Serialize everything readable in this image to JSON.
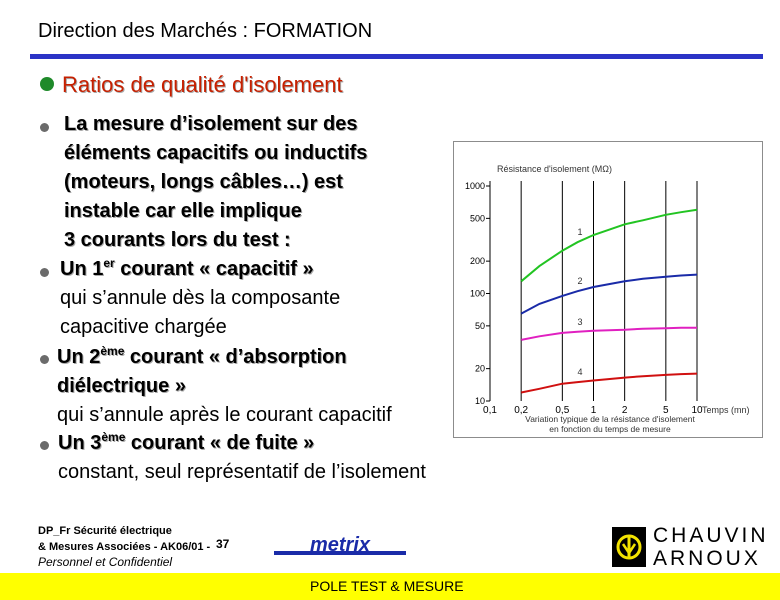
{
  "header": {
    "title": "Direction des Marchés : FORMATION"
  },
  "slide": {
    "heading": "Ratios de qualité d'isolement",
    "intro": [
      "La mesure d’isolement sur des",
      "éléments capacitifs ou inductifs",
      "(moteurs, longs câbles…) est",
      "instable car elle implique",
      "3 courants lors du test :"
    ],
    "current1": {
      "pre": "Un 1",
      "sup": "er",
      "post": " courant « capacitif »",
      "desc": [
        "qui s’annule dès la composante",
        "capacitive chargée"
      ]
    },
    "current2": {
      "pre": "Un 2",
      "sup": "ème",
      "post": " courant « d’absorption",
      "line2": "diélectrique »",
      "desc": "qui s’annule après le courant capacitif"
    },
    "current3": {
      "pre": "Un 3",
      "sup": "ème",
      "post": " courant « de fuite »",
      "desc": "constant, seul représentatif de l’isolement"
    }
  },
  "chart_data": {
    "type": "line",
    "ylabel": "Résistance d'isolement (MΩ)",
    "xlabel": "Temps (mn)",
    "y_ticks": [
      "1000",
      "500",
      "200",
      "100",
      "50",
      "20",
      "10"
    ],
    "x_ticks": [
      "0,1",
      "0,2",
      "0,5",
      "1",
      "2",
      "5",
      "10"
    ],
    "x_scale": "log",
    "y_scale": "log",
    "xlim": [
      0.1,
      10
    ],
    "ylim": [
      10,
      1000
    ],
    "caption": [
      "Variation typique de la résistance d'isolement",
      "en fonction du temps de mesure"
    ],
    "series": [
      {
        "name": "1",
        "color": "#22c422",
        "x": [
          0.2,
          0.3,
          0.5,
          0.7,
          1,
          2,
          3,
          5,
          7,
          10
        ],
        "values": [
          130,
          180,
          250,
          300,
          350,
          440,
          480,
          540,
          570,
          600
        ]
      },
      {
        "name": "2",
        "color": "#1a2ba8",
        "x": [
          0.2,
          0.3,
          0.5,
          0.7,
          1,
          2,
          3,
          5,
          7,
          10
        ],
        "values": [
          65,
          80,
          95,
          105,
          115,
          130,
          137,
          143,
          147,
          150
        ]
      },
      {
        "name": "3",
        "color": "#e020c0",
        "x": [
          0.2,
          0.3,
          0.5,
          0.7,
          1,
          2,
          3,
          5,
          7,
          10
        ],
        "values": [
          37,
          40,
          43,
          44,
          45,
          46,
          47,
          47.5,
          48,
          48
        ]
      },
      {
        "name": "4",
        "color": "#d01010",
        "x": [
          0.2,
          0.3,
          0.5,
          0.7,
          1,
          2,
          3,
          5,
          7,
          10
        ],
        "values": [
          12,
          13,
          14.5,
          15,
          15.5,
          16.5,
          17,
          17.5,
          17.8,
          18
        ]
      }
    ]
  },
  "footer": {
    "line1": "DP_Fr Sécurité électrique",
    "line2": "& Mesures Associées - AK06/01 -",
    "page": "37",
    "confidential": "Personnel et Confidentiel",
    "band": "POLE TEST & MESURE",
    "logo_metrix": "metrix",
    "logo_ca_line1": "CHAUVIN",
    "logo_ca_line2": "ARNOUX"
  }
}
